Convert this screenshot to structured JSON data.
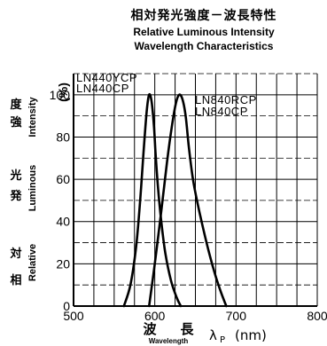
{
  "chart_data": {
    "type": "line",
    "title_jp": "相対発光強度－波長特性",
    "title_en_line1": "Relative Luminous Intensity",
    "title_en_line2": "Wavelength Characteristics",
    "ylabel_jp_1": "相",
    "ylabel_jp_2": "対",
    "ylabel_jp_3": "発",
    "ylabel_jp_4": "光",
    "ylabel_jp_5": "強",
    "ylabel_jp_6": "度",
    "ylabel_en_1": "Relative",
    "ylabel_en_2": "Luminous",
    "ylabel_en_3": "Intensity",
    "yunit": "(%)",
    "xlabel_jp_1": "波",
    "xlabel_jp_2": "長",
    "xlabel_en": "Wavelength",
    "xlabel_symbol": "λ",
    "xlabel_sub": "P",
    "xlabel_unit": "(nm)",
    "xlim": [
      500,
      800
    ],
    "ylim": [
      0,
      110
    ],
    "xticks": [
      "500",
      "600",
      "700",
      "800"
    ],
    "yticks": [
      "0",
      "20",
      "40",
      "60",
      "80",
      "100"
    ],
    "grid": true,
    "series": [
      {
        "name": "LN440YCP / LN440CP",
        "x": [
          562,
          570,
          577,
          582,
          586,
          590,
          593,
          596,
          599,
          601,
          604,
          608,
          613,
          620,
          627,
          632
        ],
        "y": [
          0,
          10,
          28,
          50,
          72,
          92,
          100,
          97,
          85,
          72,
          56,
          40,
          25,
          12,
          4,
          0
        ]
      },
      {
        "name": "LN840RCP / LN840CP",
        "x": [
          593,
          600,
          608,
          615,
          621,
          626,
          630,
          634,
          638,
          642,
          647,
          653,
          660,
          667,
          675,
          682,
          688
        ],
        "y": [
          0,
          20,
          45,
          68,
          85,
          96,
          100,
          98,
          90,
          75,
          60,
          48,
          36,
          25,
          14,
          6,
          0
        ]
      }
    ],
    "legend": {
      "label_1": "LN440YCP",
      "label_2": "LN440CP",
      "label_3": "LN840RCP",
      "label_4": "LN840CP"
    }
  }
}
